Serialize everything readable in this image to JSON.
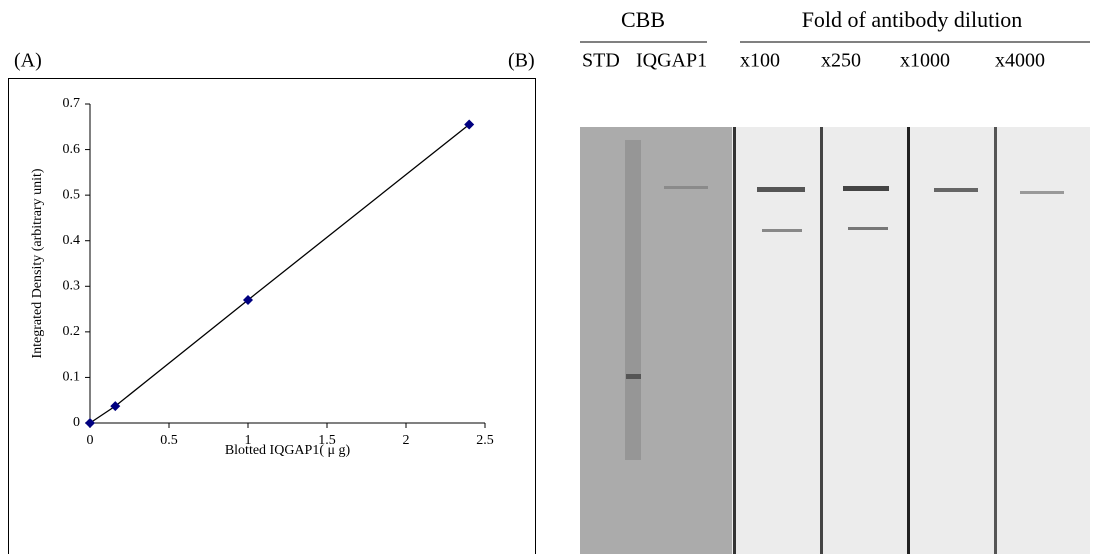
{
  "panel_a": {
    "label": "(A)"
  },
  "chart_data": {
    "type": "scatter",
    "x_label": "Blotted IQGAP1( μ g)",
    "y_label": "Integrated Density (arbitrary unit)",
    "series": [
      {
        "color": "#000080",
        "x": [
          0,
          0.16,
          1,
          2.4
        ],
        "values": [
          0,
          0.037,
          0.27,
          0.655
        ]
      }
    ],
    "connect": true,
    "xlim": [
      0,
      2.5
    ],
    "xticks": [
      0,
      0.5,
      1,
      1.5,
      2,
      2.5
    ],
    "ylim": [
      0,
      0.7
    ],
    "yticks": [
      0,
      0.1,
      0.2,
      0.3,
      0.4,
      0.5,
      0.6,
      0.7
    ]
  },
  "panel_b": {
    "label": "(B)",
    "group_headers": [
      "CBB",
      "Fold of antibody dilution"
    ],
    "lanes": [
      "STD",
      "IQGAP1",
      "x100",
      "x250",
      "x1000",
      "x4000"
    ]
  }
}
